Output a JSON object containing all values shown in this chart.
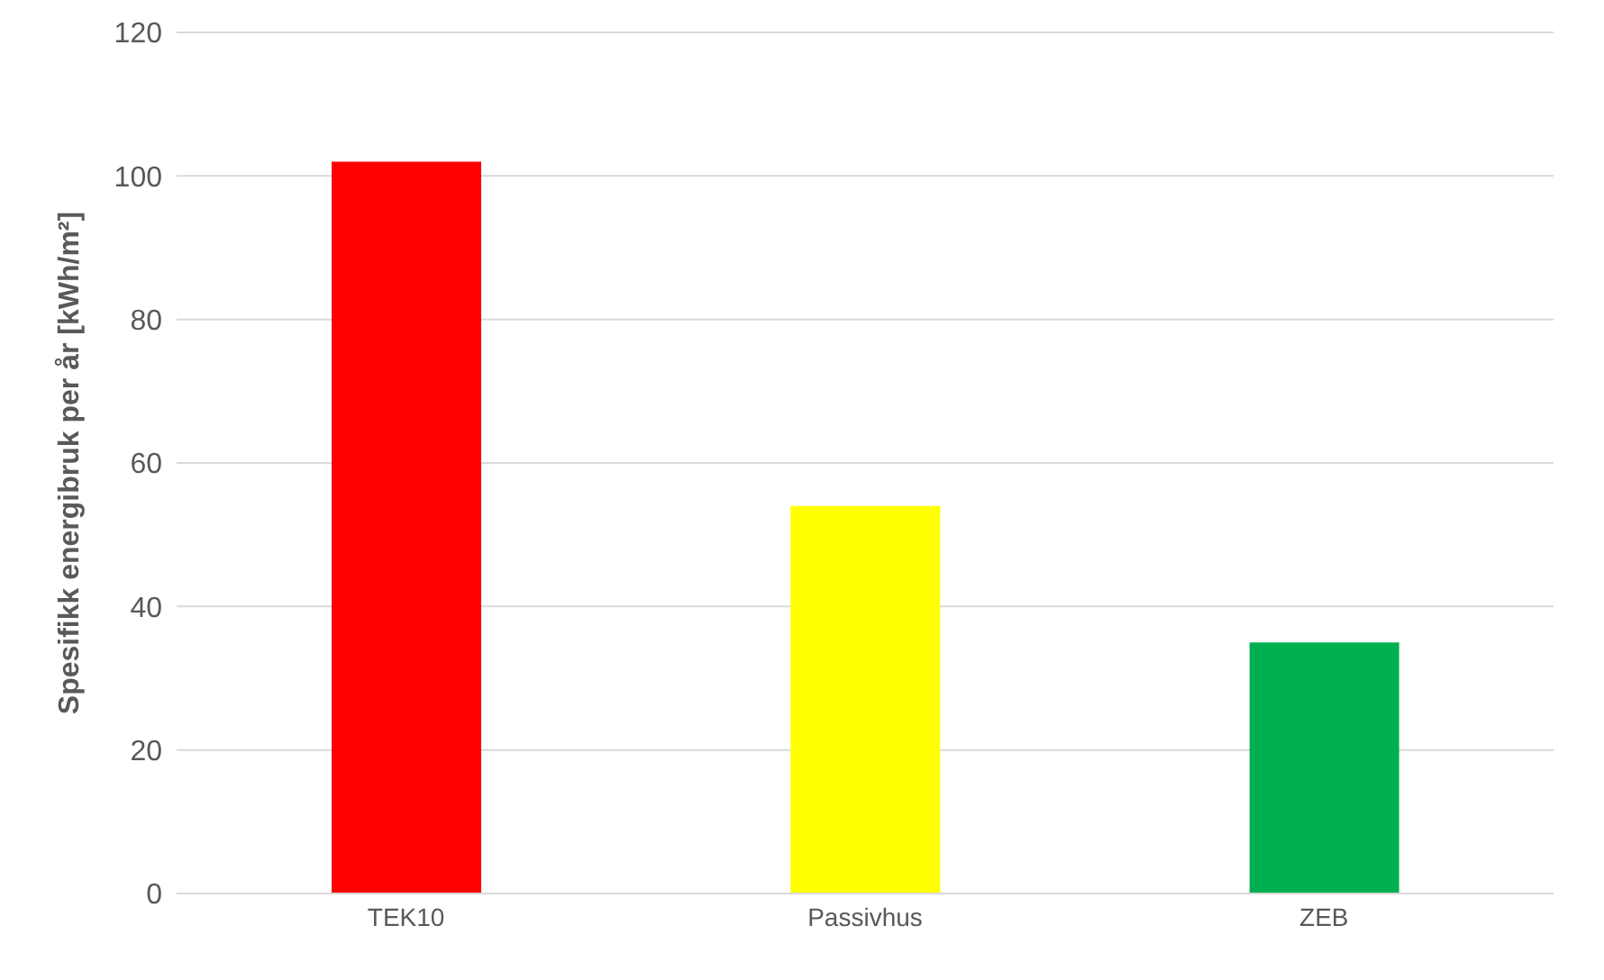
{
  "chart_data": {
    "type": "bar",
    "ylabel": "Spesifikk energibruk per år [kWh/m²]",
    "categories": [
      "TEK10",
      "Passivhus",
      "ZEB"
    ],
    "values": [
      102,
      54,
      35
    ],
    "colors": [
      "#ff0000",
      "#ffff00",
      "#00b050"
    ],
    "ylim": [
      0,
      120
    ],
    "yticks": [
      0,
      20,
      40,
      60,
      80,
      100,
      120
    ],
    "grid": "y"
  }
}
